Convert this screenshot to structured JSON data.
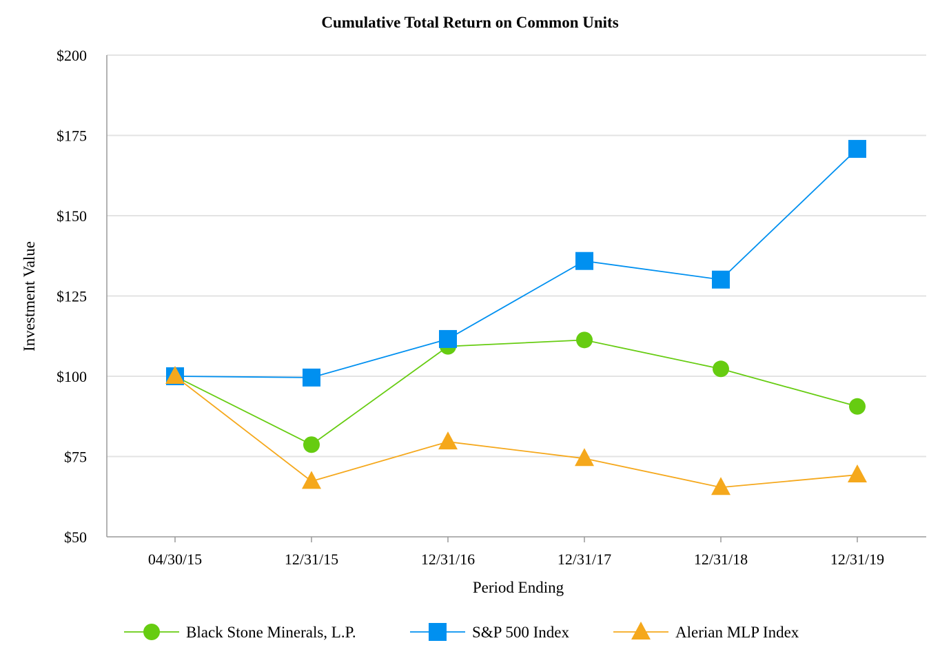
{
  "chart_data": {
    "type": "line",
    "title": "Cumulative Total Return on Common Units",
    "xlabel": "Period Ending",
    "ylabel": "Investment Value",
    "categories": [
      "04/30/15",
      "12/31/15",
      "12/31/16",
      "12/31/17",
      "12/31/18",
      "12/31/19"
    ],
    "ylim": [
      50,
      200
    ],
    "yticks": [
      50,
      75,
      100,
      125,
      150,
      175,
      200
    ],
    "ytick_labels": [
      "$50",
      "$75",
      "$100",
      "$125",
      "$150",
      "$175",
      "$200"
    ],
    "grid": true,
    "legend_position": "bottom",
    "series": [
      {
        "name": "Black Stone Minerals, L.P.",
        "marker": "circle",
        "color": "#66cc11",
        "values": [
          100.0,
          78.7,
          109.3,
          111.3,
          102.3,
          90.6
        ]
      },
      {
        "name": "S&P 500 Index",
        "marker": "square",
        "color": "#0090f0",
        "values": [
          100.0,
          99.6,
          111.6,
          135.9,
          130.1,
          170.8
        ]
      },
      {
        "name": "Alerian MLP Index",
        "marker": "triangle",
        "color": "#f5a81c",
        "values": [
          100.0,
          67.3,
          79.6,
          74.4,
          65.4,
          69.3
        ]
      }
    ]
  }
}
